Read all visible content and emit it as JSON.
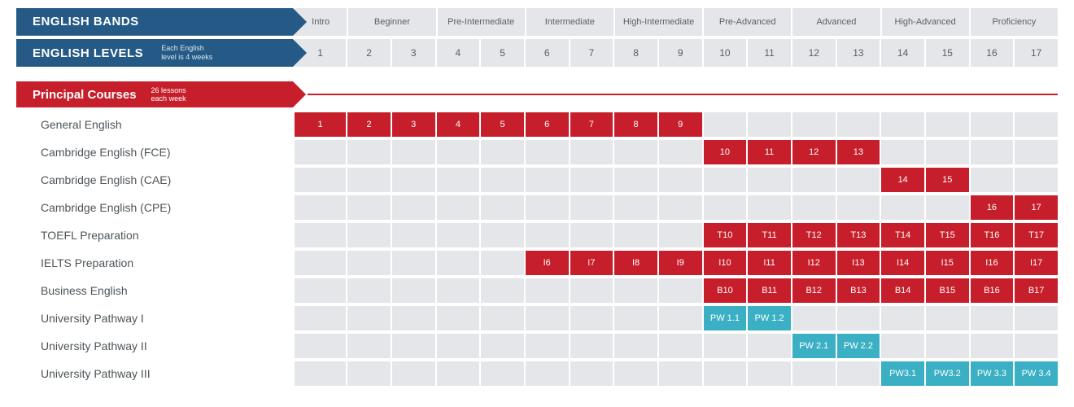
{
  "colors": {
    "headerBlue": "#255a86",
    "headerCell": "#e5e6e9",
    "headerText": "#5a5f66",
    "red": "#c61f2b",
    "teal": "#3bb0c4",
    "rowLabel": "#4d5459"
  },
  "header": {
    "bandsTitle": "ENGLISH BANDS",
    "levelsTitle": "ENGLISH LEVELS",
    "levelsSub1": "Each English",
    "levelsSub2": "level is 4 weeks",
    "introLabel": "Intro",
    "bands": [
      "Beginner",
      "Pre-Intermediate",
      "Intermediate",
      "High-Intermediate",
      "Pre-Advanced",
      "Advanced",
      "High-Advanced",
      "Proficiency"
    ],
    "bandSpans": [
      2,
      2,
      2,
      2,
      2,
      2,
      2,
      2
    ],
    "levels": [
      "2",
      "3",
      "4",
      "5",
      "6",
      "7",
      "8",
      "9",
      "10",
      "11",
      "12",
      "13",
      "14",
      "15",
      "16",
      "17"
    ],
    "levelOne": "1"
  },
  "section": {
    "title": "Principal Courses",
    "sub1": "26 lessons",
    "sub2": "each week"
  },
  "courses": [
    {
      "name": "General English",
      "intro": {
        "label": "1",
        "style": "red"
      },
      "cells": [
        {
          "label": "2",
          "style": "red"
        },
        {
          "label": "3",
          "style": "red"
        },
        {
          "label": "4",
          "style": "red"
        },
        {
          "label": "5",
          "style": "red"
        },
        {
          "label": "6",
          "style": "red"
        },
        {
          "label": "7",
          "style": "red"
        },
        {
          "label": "8",
          "style": "red"
        },
        {
          "label": "9",
          "style": "red"
        },
        {
          "label": "",
          "style": "empty"
        },
        {
          "label": "",
          "style": "empty"
        },
        {
          "label": "",
          "style": "empty"
        },
        {
          "label": "",
          "style": "empty"
        },
        {
          "label": "",
          "style": "empty"
        },
        {
          "label": "",
          "style": "empty"
        },
        {
          "label": "",
          "style": "empty"
        },
        {
          "label": "",
          "style": "empty"
        }
      ]
    },
    {
      "name": "Cambridge English (FCE)",
      "intro": {
        "label": "",
        "style": "empty"
      },
      "cells": [
        {
          "label": "",
          "style": "empty"
        },
        {
          "label": "",
          "style": "empty"
        },
        {
          "label": "",
          "style": "empty"
        },
        {
          "label": "",
          "style": "empty"
        },
        {
          "label": "",
          "style": "empty"
        },
        {
          "label": "",
          "style": "empty"
        },
        {
          "label": "",
          "style": "empty"
        },
        {
          "label": "",
          "style": "empty"
        },
        {
          "label": "10",
          "style": "red"
        },
        {
          "label": "11",
          "style": "red"
        },
        {
          "label": "12",
          "style": "red"
        },
        {
          "label": "13",
          "style": "red"
        },
        {
          "label": "",
          "style": "empty"
        },
        {
          "label": "",
          "style": "empty"
        },
        {
          "label": "",
          "style": "empty"
        },
        {
          "label": "",
          "style": "empty"
        }
      ]
    },
    {
      "name": "Cambridge English (CAE)",
      "intro": {
        "label": "",
        "style": "empty"
      },
      "cells": [
        {
          "label": "",
          "style": "empty"
        },
        {
          "label": "",
          "style": "empty"
        },
        {
          "label": "",
          "style": "empty"
        },
        {
          "label": "",
          "style": "empty"
        },
        {
          "label": "",
          "style": "empty"
        },
        {
          "label": "",
          "style": "empty"
        },
        {
          "label": "",
          "style": "empty"
        },
        {
          "label": "",
          "style": "empty"
        },
        {
          "label": "",
          "style": "empty"
        },
        {
          "label": "",
          "style": "empty"
        },
        {
          "label": "",
          "style": "empty"
        },
        {
          "label": "",
          "style": "empty"
        },
        {
          "label": "14",
          "style": "red"
        },
        {
          "label": "15",
          "style": "red"
        },
        {
          "label": "",
          "style": "empty"
        },
        {
          "label": "",
          "style": "empty"
        }
      ]
    },
    {
      "name": "Cambridge English (CPE)",
      "intro": {
        "label": "",
        "style": "empty"
      },
      "cells": [
        {
          "label": "",
          "style": "empty"
        },
        {
          "label": "",
          "style": "empty"
        },
        {
          "label": "",
          "style": "empty"
        },
        {
          "label": "",
          "style": "empty"
        },
        {
          "label": "",
          "style": "empty"
        },
        {
          "label": "",
          "style": "empty"
        },
        {
          "label": "",
          "style": "empty"
        },
        {
          "label": "",
          "style": "empty"
        },
        {
          "label": "",
          "style": "empty"
        },
        {
          "label": "",
          "style": "empty"
        },
        {
          "label": "",
          "style": "empty"
        },
        {
          "label": "",
          "style": "empty"
        },
        {
          "label": "",
          "style": "empty"
        },
        {
          "label": "",
          "style": "empty"
        },
        {
          "label": "16",
          "style": "red"
        },
        {
          "label": "17",
          "style": "red"
        }
      ]
    },
    {
      "name": "TOEFL Preparation",
      "intro": {
        "label": "",
        "style": "empty"
      },
      "cells": [
        {
          "label": "",
          "style": "empty"
        },
        {
          "label": "",
          "style": "empty"
        },
        {
          "label": "",
          "style": "empty"
        },
        {
          "label": "",
          "style": "empty"
        },
        {
          "label": "",
          "style": "empty"
        },
        {
          "label": "",
          "style": "empty"
        },
        {
          "label": "",
          "style": "empty"
        },
        {
          "label": "",
          "style": "empty"
        },
        {
          "label": "T10",
          "style": "red"
        },
        {
          "label": "T11",
          "style": "red"
        },
        {
          "label": "T12",
          "style": "red"
        },
        {
          "label": "T13",
          "style": "red"
        },
        {
          "label": "T14",
          "style": "red"
        },
        {
          "label": "T15",
          "style": "red"
        },
        {
          "label": "T16",
          "style": "red"
        },
        {
          "label": "T17",
          "style": "red"
        }
      ]
    },
    {
      "name": "IELTS Preparation",
      "intro": {
        "label": "",
        "style": "empty"
      },
      "cells": [
        {
          "label": "",
          "style": "empty"
        },
        {
          "label": "",
          "style": "empty"
        },
        {
          "label": "",
          "style": "empty"
        },
        {
          "label": "",
          "style": "empty"
        },
        {
          "label": "I6",
          "style": "red"
        },
        {
          "label": "I7",
          "style": "red"
        },
        {
          "label": "I8",
          "style": "red"
        },
        {
          "label": "I9",
          "style": "red"
        },
        {
          "label": "I10",
          "style": "red"
        },
        {
          "label": "I11",
          "style": "red"
        },
        {
          "label": "I12",
          "style": "red"
        },
        {
          "label": "I13",
          "style": "red"
        },
        {
          "label": "I14",
          "style": "red"
        },
        {
          "label": "I15",
          "style": "red"
        },
        {
          "label": "I16",
          "style": "red"
        },
        {
          "label": "I17",
          "style": "red"
        }
      ]
    },
    {
      "name": "Business English",
      "intro": {
        "label": "",
        "style": "empty"
      },
      "cells": [
        {
          "label": "",
          "style": "empty"
        },
        {
          "label": "",
          "style": "empty"
        },
        {
          "label": "",
          "style": "empty"
        },
        {
          "label": "",
          "style": "empty"
        },
        {
          "label": "",
          "style": "empty"
        },
        {
          "label": "",
          "style": "empty"
        },
        {
          "label": "",
          "style": "empty"
        },
        {
          "label": "",
          "style": "empty"
        },
        {
          "label": "B10",
          "style": "red"
        },
        {
          "label": "B11",
          "style": "red"
        },
        {
          "label": "B12",
          "style": "red"
        },
        {
          "label": "B13",
          "style": "red"
        },
        {
          "label": "B14",
          "style": "red"
        },
        {
          "label": "B15",
          "style": "red"
        },
        {
          "label": "B16",
          "style": "red"
        },
        {
          "label": "B17",
          "style": "red"
        }
      ]
    },
    {
      "name": "University Pathway I",
      "intro": {
        "label": "",
        "style": "empty"
      },
      "cells": [
        {
          "label": "",
          "style": "empty"
        },
        {
          "label": "",
          "style": "empty"
        },
        {
          "label": "",
          "style": "empty"
        },
        {
          "label": "",
          "style": "empty"
        },
        {
          "label": "",
          "style": "empty"
        },
        {
          "label": "",
          "style": "empty"
        },
        {
          "label": "",
          "style": "empty"
        },
        {
          "label": "",
          "style": "empty"
        },
        {
          "label": "PW 1.1",
          "style": "teal"
        },
        {
          "label": "PW 1.2",
          "style": "teal"
        },
        {
          "label": "",
          "style": "empty"
        },
        {
          "label": "",
          "style": "empty"
        },
        {
          "label": "",
          "style": "empty"
        },
        {
          "label": "",
          "style": "empty"
        },
        {
          "label": "",
          "style": "empty"
        },
        {
          "label": "",
          "style": "empty"
        }
      ]
    },
    {
      "name": "University Pathway II",
      "intro": {
        "label": "",
        "style": "empty"
      },
      "cells": [
        {
          "label": "",
          "style": "empty"
        },
        {
          "label": "",
          "style": "empty"
        },
        {
          "label": "",
          "style": "empty"
        },
        {
          "label": "",
          "style": "empty"
        },
        {
          "label": "",
          "style": "empty"
        },
        {
          "label": "",
          "style": "empty"
        },
        {
          "label": "",
          "style": "empty"
        },
        {
          "label": "",
          "style": "empty"
        },
        {
          "label": "",
          "style": "empty"
        },
        {
          "label": "",
          "style": "empty"
        },
        {
          "label": "PW 2.1",
          "style": "teal"
        },
        {
          "label": "PW 2.2",
          "style": "teal"
        },
        {
          "label": "",
          "style": "empty"
        },
        {
          "label": "",
          "style": "empty"
        },
        {
          "label": "",
          "style": "empty"
        },
        {
          "label": "",
          "style": "empty"
        }
      ]
    },
    {
      "name": "University Pathway III",
      "intro": {
        "label": "",
        "style": "empty"
      },
      "cells": [
        {
          "label": "",
          "style": "empty"
        },
        {
          "label": "",
          "style": "empty"
        },
        {
          "label": "",
          "style": "empty"
        },
        {
          "label": "",
          "style": "empty"
        },
        {
          "label": "",
          "style": "empty"
        },
        {
          "label": "",
          "style": "empty"
        },
        {
          "label": "",
          "style": "empty"
        },
        {
          "label": "",
          "style": "empty"
        },
        {
          "label": "",
          "style": "empty"
        },
        {
          "label": "",
          "style": "empty"
        },
        {
          "label": "",
          "style": "empty"
        },
        {
          "label": "",
          "style": "empty"
        },
        {
          "label": "PW3.1",
          "style": "teal"
        },
        {
          "label": "PW3.2",
          "style": "teal"
        },
        {
          "label": "PW 3.3",
          "style": "teal"
        },
        {
          "label": "PW 3.4",
          "style": "teal"
        }
      ]
    }
  ]
}
